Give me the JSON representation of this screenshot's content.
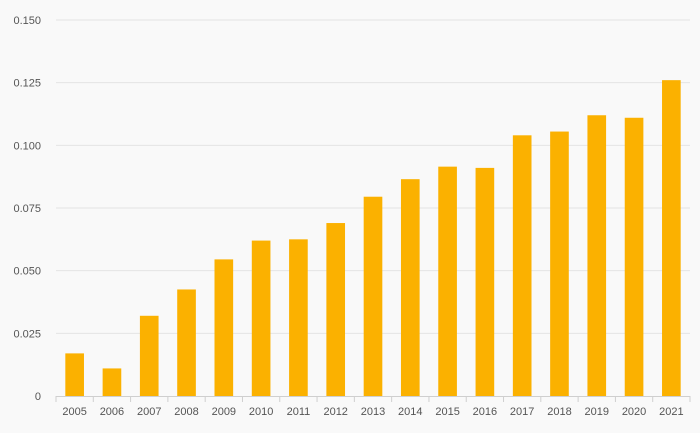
{
  "chart_data": {
    "type": "bar",
    "categories": [
      "2005",
      "2006",
      "2007",
      "2008",
      "2009",
      "2010",
      "2011",
      "2012",
      "2013",
      "2014",
      "2015",
      "2016",
      "2017",
      "2018",
      "2019",
      "2020",
      "2021"
    ],
    "values": [
      0.017,
      0.011,
      0.032,
      0.0425,
      0.0545,
      0.062,
      0.0625,
      0.069,
      0.0795,
      0.0865,
      0.0915,
      0.091,
      0.104,
      0.1055,
      0.112,
      0.111,
      0.126
    ],
    "y_tick_labels": [
      "0",
      "0.025",
      "0.050",
      "0.075",
      "0.100",
      "0.125",
      "0.150"
    ],
    "y_ticks": [
      0,
      0.025,
      0.05,
      0.075,
      0.1,
      0.125,
      0.15
    ],
    "ylim": [
      0,
      0.15
    ],
    "title": "",
    "xlabel": "",
    "ylabel": "",
    "grid": true,
    "legend": "none",
    "bar_color": "#fbb100"
  }
}
